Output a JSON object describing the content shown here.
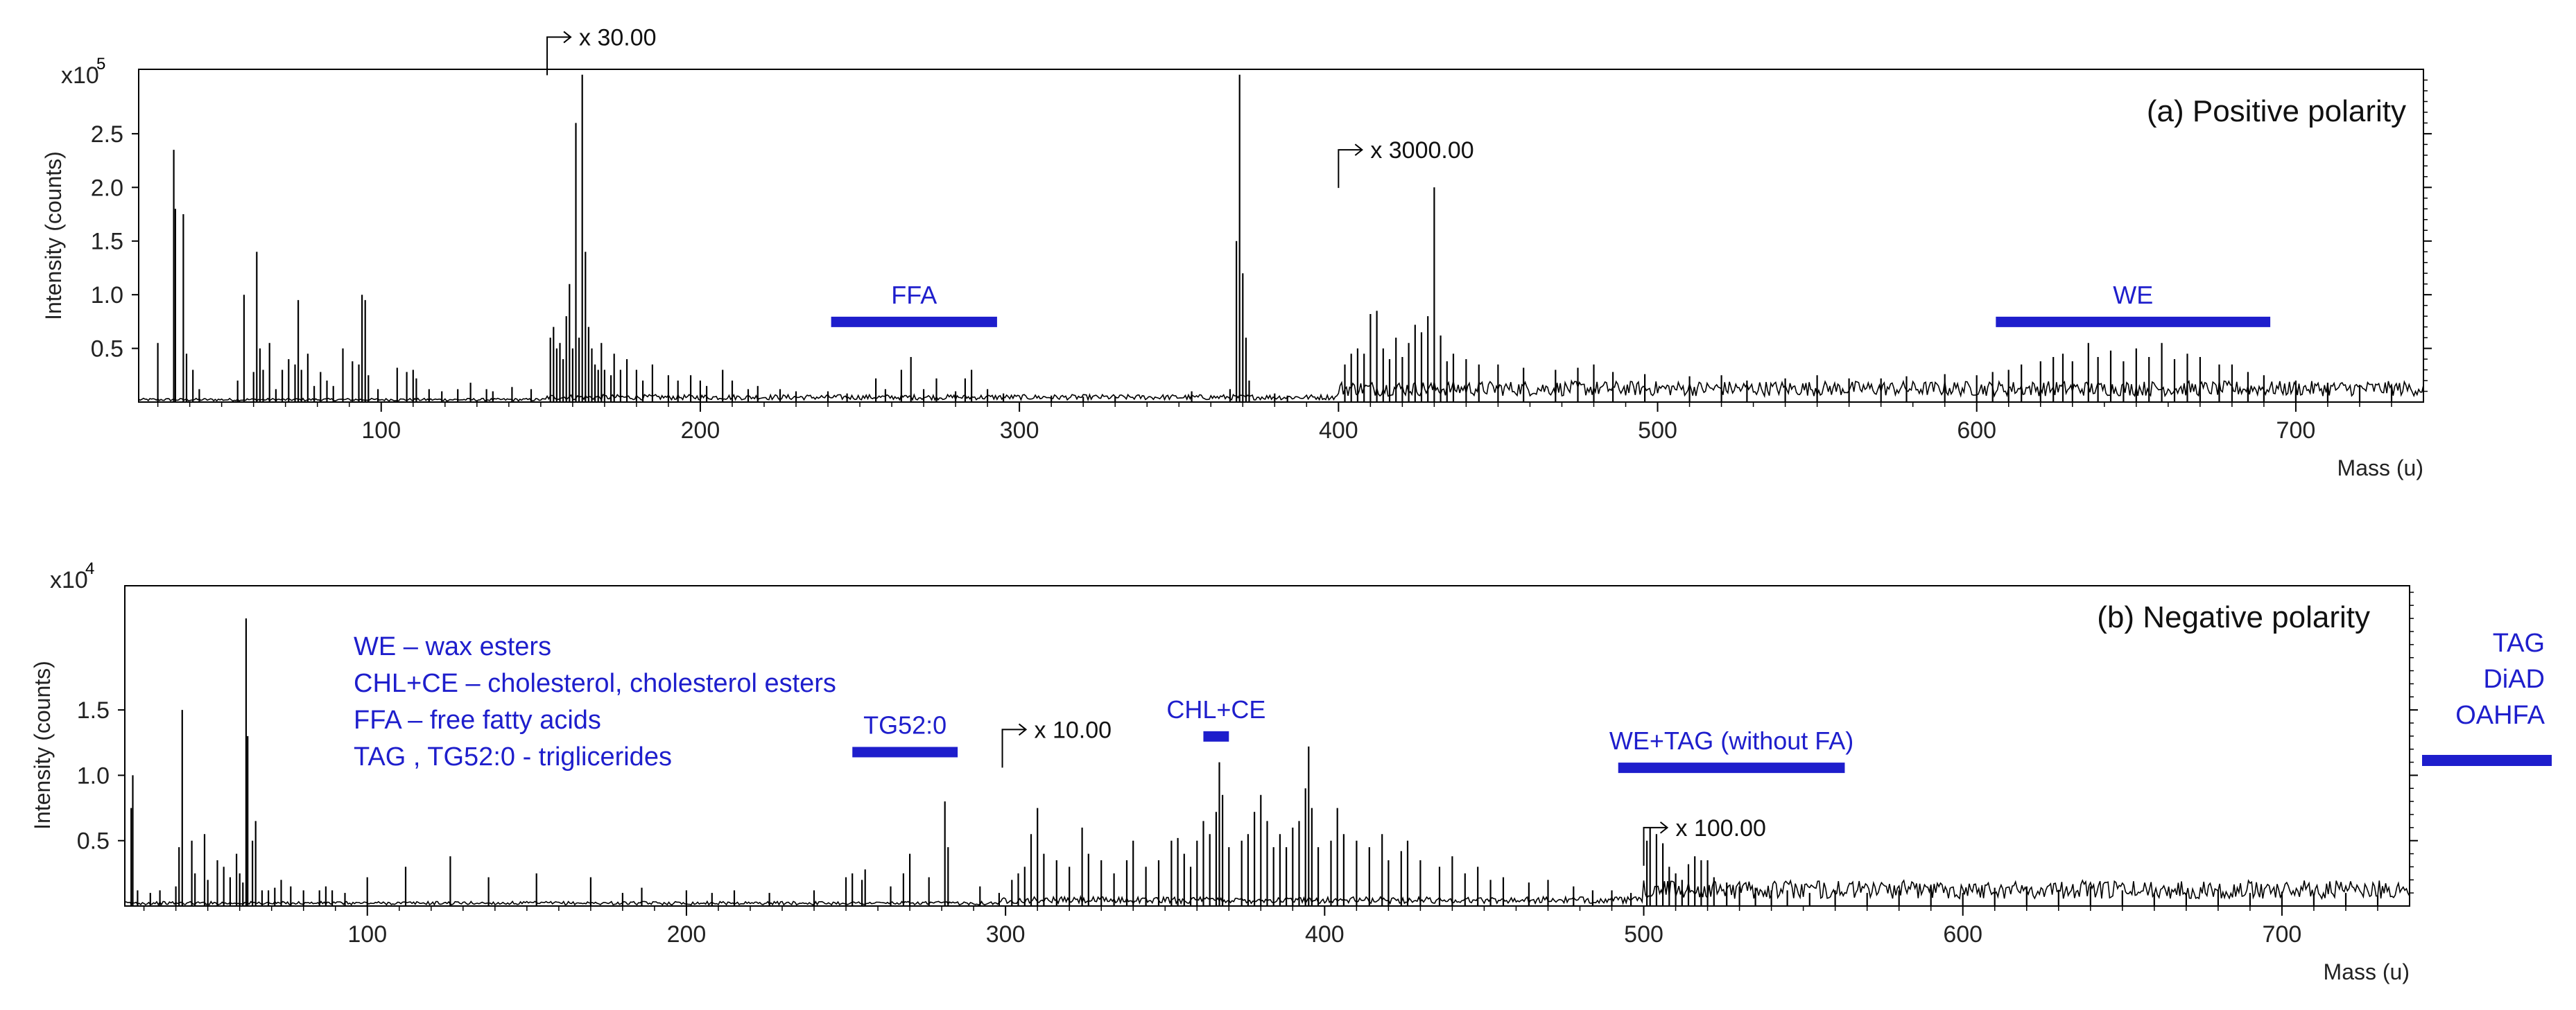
{
  "colors": {
    "annotation": "#1e1ecc",
    "trace": "#000000"
  },
  "chart_data": [
    {
      "type": "line",
      "title": "(a) Positive polarity",
      "xlabel": "Mass (u)",
      "ylabel": "Intensity (counts)",
      "y_scale_label": "x10",
      "y_scale_exp": "5",
      "xlim": [
        24,
        740
      ],
      "ylim": [
        0,
        3.1
      ],
      "xticks": [
        100,
        200,
        300,
        400,
        500,
        600,
        700
      ],
      "yticks": [
        0.5,
        1.0,
        1.5,
        2.0,
        2.5
      ],
      "ytick_labels": [
        "0.5",
        "1.0",
        "1.5",
        "2.0",
        "2.5"
      ],
      "multipliers": [
        {
          "label": "x 30.00",
          "from_mass": 152,
          "y": 3.4
        },
        {
          "label": "x 3000.00",
          "from_mass": 400,
          "y": 2.35
        }
      ],
      "class_bars": [
        {
          "label": "FFA",
          "x": [
            241,
            293
          ],
          "y": 0.75
        },
        {
          "label": "WE",
          "x": [
            606,
            692
          ],
          "y": 0.75
        }
      ],
      "peaks": [
        [
          30,
          0.55
        ],
        [
          35,
          2.35
        ],
        [
          35.5,
          1.8
        ],
        [
          38,
          1.75
        ],
        [
          39,
          0.45
        ],
        [
          41,
          0.3
        ],
        [
          43,
          0.12
        ],
        [
          55,
          0.2
        ],
        [
          57,
          1.0
        ],
        [
          60,
          0.28
        ],
        [
          61,
          1.4
        ],
        [
          62,
          0.5
        ],
        [
          63,
          0.3
        ],
        [
          65,
          0.55
        ],
        [
          67,
          0.12
        ],
        [
          69,
          0.3
        ],
        [
          71,
          0.4
        ],
        [
          73,
          0.35
        ],
        [
          74,
          0.95
        ],
        [
          75,
          0.3
        ],
        [
          77,
          0.45
        ],
        [
          79,
          0.15
        ],
        [
          81,
          0.28
        ],
        [
          83,
          0.2
        ],
        [
          85,
          0.15
        ],
        [
          88,
          0.5
        ],
        [
          91,
          0.38
        ],
        [
          93,
          0.35
        ],
        [
          94,
          1.0
        ],
        [
          95,
          0.95
        ],
        [
          96,
          0.25
        ],
        [
          99,
          0.12
        ],
        [
          105,
          0.32
        ],
        [
          108,
          0.28
        ],
        [
          110,
          0.3
        ],
        [
          111,
          0.22
        ],
        [
          115,
          0.12
        ],
        [
          119,
          0.1
        ],
        [
          124,
          0.12
        ],
        [
          128,
          0.18
        ],
        [
          133,
          0.12
        ],
        [
          135,
          0.1
        ],
        [
          141,
          0.14
        ],
        [
          147,
          0.12
        ],
        [
          153,
          0.6
        ],
        [
          154,
          0.7
        ],
        [
          155,
          0.5
        ],
        [
          156,
          0.55
        ],
        [
          157,
          0.4
        ],
        [
          158,
          0.8
        ],
        [
          159,
          1.1
        ],
        [
          160,
          0.5
        ],
        [
          161,
          2.6
        ],
        [
          162,
          0.6
        ],
        [
          163,
          3.05
        ],
        [
          164,
          1.4
        ],
        [
          165,
          0.7
        ],
        [
          166,
          0.5
        ],
        [
          167,
          0.35
        ],
        [
          168,
          0.3
        ],
        [
          169,
          0.55
        ],
        [
          170,
          0.3
        ],
        [
          172,
          0.25
        ],
        [
          173,
          0.45
        ],
        [
          175,
          0.3
        ],
        [
          177,
          0.4
        ],
        [
          180,
          0.3
        ],
        [
          182,
          0.2
        ],
        [
          185,
          0.35
        ],
        [
          190,
          0.25
        ],
        [
          193,
          0.2
        ],
        [
          197,
          0.25
        ],
        [
          200,
          0.2
        ],
        [
          202,
          0.15
        ],
        [
          207,
          0.3
        ],
        [
          210,
          0.2
        ],
        [
          215,
          0.12
        ],
        [
          218,
          0.15
        ],
        [
          225,
          0.12
        ],
        [
          230,
          0.1
        ],
        [
          240,
          0.1
        ],
        [
          246,
          0.08
        ],
        [
          255,
          0.22
        ],
        [
          258,
          0.12
        ],
        [
          263,
          0.3
        ],
        [
          266,
          0.42
        ],
        [
          270,
          0.12
        ],
        [
          274,
          0.22
        ],
        [
          280,
          0.1
        ],
        [
          283,
          0.22
        ],
        [
          285,
          0.3
        ],
        [
          290,
          0.12
        ],
        [
          295,
          0.08
        ],
        [
          310,
          0.06
        ],
        [
          320,
          0.05
        ],
        [
          330,
          0.05
        ],
        [
          354,
          0.1
        ],
        [
          366,
          0.12
        ],
        [
          368,
          1.5
        ],
        [
          369,
          3.05
        ],
        [
          370,
          1.2
        ],
        [
          371,
          0.6
        ],
        [
          372,
          0.2
        ],
        [
          380,
          0.08
        ],
        [
          384,
          0.06
        ],
        [
          402,
          0.35
        ],
        [
          404,
          0.45
        ],
        [
          406,
          0.5
        ],
        [
          408,
          0.45
        ],
        [
          410,
          0.82
        ],
        [
          412,
          0.85
        ],
        [
          414,
          0.5
        ],
        [
          416,
          0.4
        ],
        [
          418,
          0.6
        ],
        [
          420,
          0.42
        ],
        [
          422,
          0.55
        ],
        [
          424,
          0.72
        ],
        [
          426,
          0.65
        ],
        [
          428,
          0.8
        ],
        [
          430,
          2.0
        ],
        [
          432,
          0.62
        ],
        [
          434,
          0.38
        ],
        [
          436,
          0.45
        ],
        [
          440,
          0.4
        ],
        [
          444,
          0.35
        ],
        [
          450,
          0.35
        ],
        [
          458,
          0.32
        ],
        [
          468,
          0.3
        ],
        [
          475,
          0.32
        ],
        [
          480,
          0.35
        ],
        [
          486,
          0.28
        ],
        [
          496,
          0.26
        ],
        [
          510,
          0.24
        ],
        [
          520,
          0.25
        ],
        [
          528,
          0.2
        ],
        [
          540,
          0.22
        ],
        [
          550,
          0.25
        ],
        [
          560,
          0.22
        ],
        [
          570,
          0.22
        ],
        [
          578,
          0.24
        ],
        [
          590,
          0.26
        ],
        [
          600,
          0.25
        ],
        [
          605,
          0.28
        ],
        [
          610,
          0.3
        ],
        [
          614,
          0.35
        ],
        [
          620,
          0.38
        ],
        [
          624,
          0.42
        ],
        [
          627,
          0.45
        ],
        [
          630,
          0.38
        ],
        [
          635,
          0.55
        ],
        [
          638,
          0.42
        ],
        [
          642,
          0.48
        ],
        [
          646,
          0.38
        ],
        [
          650,
          0.5
        ],
        [
          654,
          0.42
        ],
        [
          658,
          0.55
        ],
        [
          662,
          0.4
        ],
        [
          666,
          0.45
        ],
        [
          670,
          0.42
        ],
        [
          676,
          0.35
        ],
        [
          680,
          0.35
        ],
        [
          685,
          0.28
        ],
        [
          690,
          0.25
        ],
        [
          700,
          0.2
        ],
        [
          710,
          0.18
        ],
        [
          720,
          0.16
        ],
        [
          730,
          0.14
        ]
      ]
    },
    {
      "type": "line",
      "title": "(b) Negative polarity",
      "xlabel": "Mass (u)",
      "ylabel": "Intensity (counts)",
      "y_scale_label": "x10",
      "y_scale_exp": "4",
      "xlim": [
        24,
        740
      ],
      "ylim": [
        0,
        2.45
      ],
      "xticks": [
        100,
        200,
        300,
        400,
        500,
        600,
        700
      ],
      "yticks": [
        0.5,
        1.0,
        1.5
      ],
      "ytick_labels": [
        "0.5",
        "1.0",
        "1.5"
      ],
      "multipliers": [
        {
          "label": "x 10.00",
          "from_mass": 299,
          "y": 1.35
        },
        {
          "label": "x 100.00",
          "from_mass": 500,
          "y": 0.6
        }
      ],
      "class_bars": [
        {
          "label": "TG52:0",
          "x": [
            252,
            285
          ],
          "y": 1.18
        },
        {
          "label": "CHL+CE",
          "x": [
            362,
            370
          ],
          "y": 1.3
        },
        {
          "label": "WE+TAG (without FA)",
          "x": [
            492,
            563
          ],
          "y": 1.06
        }
      ],
      "legend": [
        "WE – wax esters",
        "CHL+CE – cholesterol, cholesterol esters",
        "FFA – free fatty acids",
        "TAG , TG52:0 - triglicerides"
      ],
      "side_labels": [
        "TAG",
        "DiAD",
        "OAHFA"
      ],
      "peaks": [
        [
          26,
          0.75
        ],
        [
          26.5,
          1.0
        ],
        [
          28,
          0.12
        ],
        [
          32,
          0.1
        ],
        [
          35,
          0.12
        ],
        [
          40,
          0.15
        ],
        [
          41,
          0.45
        ],
        [
          42,
          1.5
        ],
        [
          45,
          0.5
        ],
        [
          46,
          0.25
        ],
        [
          49,
          0.55
        ],
        [
          50,
          0.2
        ],
        [
          53,
          0.35
        ],
        [
          55,
          0.3
        ],
        [
          57,
          0.22
        ],
        [
          59,
          0.4
        ],
        [
          60,
          0.25
        ],
        [
          61,
          0.18
        ],
        [
          62,
          2.2
        ],
        [
          62.5,
          1.3
        ],
        [
          64,
          0.5
        ],
        [
          65,
          0.65
        ],
        [
          67,
          0.12
        ],
        [
          69,
          0.12
        ],
        [
          71,
          0.14
        ],
        [
          73,
          0.2
        ],
        [
          76,
          0.15
        ],
        [
          80,
          0.12
        ],
        [
          85,
          0.12
        ],
        [
          87,
          0.15
        ],
        [
          89,
          0.12
        ],
        [
          93,
          0.1
        ],
        [
          100,
          0.22
        ],
        [
          112,
          0.3
        ],
        [
          126,
          0.38
        ],
        [
          138,
          0.22
        ],
        [
          153,
          0.25
        ],
        [
          170,
          0.22
        ],
        [
          180,
          0.1
        ],
        [
          186,
          0.14
        ],
        [
          200,
          0.12
        ],
        [
          208,
          0.1
        ],
        [
          215,
          0.12
        ],
        [
          226,
          0.1
        ],
        [
          240,
          0.12
        ],
        [
          250,
          0.22
        ],
        [
          252,
          0.25
        ],
        [
          255,
          0.2
        ],
        [
          256,
          0.28
        ],
        [
          264,
          0.15
        ],
        [
          268,
          0.25
        ],
        [
          270,
          0.4
        ],
        [
          276,
          0.22
        ],
        [
          281,
          0.8
        ],
        [
          282,
          0.45
        ],
        [
          292,
          0.15
        ],
        [
          298,
          0.1
        ],
        [
          302,
          0.2
        ],
        [
          304,
          0.25
        ],
        [
          306,
          0.3
        ],
        [
          308,
          0.55
        ],
        [
          310,
          0.75
        ],
        [
          312,
          0.4
        ],
        [
          316,
          0.35
        ],
        [
          320,
          0.3
        ],
        [
          324,
          0.6
        ],
        [
          326,
          0.4
        ],
        [
          330,
          0.35
        ],
        [
          334,
          0.25
        ],
        [
          338,
          0.35
        ],
        [
          340,
          0.5
        ],
        [
          344,
          0.3
        ],
        [
          348,
          0.35
        ],
        [
          352,
          0.5
        ],
        [
          354,
          0.52
        ],
        [
          356,
          0.4
        ],
        [
          358,
          0.3
        ],
        [
          360,
          0.5
        ],
        [
          362,
          0.65
        ],
        [
          364,
          0.55
        ],
        [
          366,
          0.72
        ],
        [
          367,
          1.1
        ],
        [
          368,
          0.85
        ],
        [
          370,
          0.45
        ],
        [
          374,
          0.5
        ],
        [
          376,
          0.55
        ],
        [
          378,
          0.72
        ],
        [
          380,
          0.85
        ],
        [
          382,
          0.65
        ],
        [
          384,
          0.45
        ],
        [
          386,
          0.55
        ],
        [
          388,
          0.45
        ],
        [
          390,
          0.6
        ],
        [
          392,
          0.65
        ],
        [
          394,
          0.9
        ],
        [
          395,
          1.22
        ],
        [
          396,
          0.75
        ],
        [
          398,
          0.45
        ],
        [
          402,
          0.5
        ],
        [
          404,
          0.75
        ],
        [
          406,
          0.55
        ],
        [
          410,
          0.5
        ],
        [
          414,
          0.45
        ],
        [
          418,
          0.55
        ],
        [
          420,
          0.35
        ],
        [
          424,
          0.42
        ],
        [
          426,
          0.5
        ],
        [
          430,
          0.35
        ],
        [
          436,
          0.3
        ],
        [
          440,
          0.38
        ],
        [
          444,
          0.25
        ],
        [
          448,
          0.3
        ],
        [
          452,
          0.2
        ],
        [
          456,
          0.22
        ],
        [
          464,
          0.18
        ],
        [
          470,
          0.2
        ],
        [
          478,
          0.15
        ],
        [
          484,
          0.12
        ],
        [
          490,
          0.12
        ],
        [
          496,
          0.1
        ],
        [
          501,
          0.5
        ],
        [
          502,
          0.6
        ],
        [
          504,
          0.55
        ],
        [
          506,
          0.48
        ],
        [
          508,
          0.3
        ],
        [
          510,
          0.25
        ],
        [
          512,
          0.2
        ],
        [
          514,
          0.32
        ],
        [
          516,
          0.38
        ],
        [
          518,
          0.35
        ],
        [
          520,
          0.35
        ],
        [
          522,
          0.22
        ],
        [
          526,
          0.18
        ],
        [
          530,
          0.15
        ],
        [
          535,
          0.14
        ],
        [
          540,
          0.12
        ],
        [
          545,
          0.12
        ],
        [
          552,
          0.1
        ],
        [
          560,
          0.12
        ],
        [
          570,
          0.1
        ],
        [
          580,
          0.12
        ],
        [
          590,
          0.13
        ],
        [
          600,
          0.1
        ],
        [
          610,
          0.14
        ],
        [
          620,
          0.15
        ],
        [
          630,
          0.12
        ],
        [
          640,
          0.15
        ],
        [
          650,
          0.12
        ],
        [
          660,
          0.1
        ],
        [
          670,
          0.1
        ],
        [
          680,
          0.12
        ],
        [
          690,
          0.1
        ],
        [
          700,
          0.11
        ],
        [
          710,
          0.08
        ],
        [
          720,
          0.1
        ],
        [
          730,
          0.08
        ]
      ]
    }
  ]
}
